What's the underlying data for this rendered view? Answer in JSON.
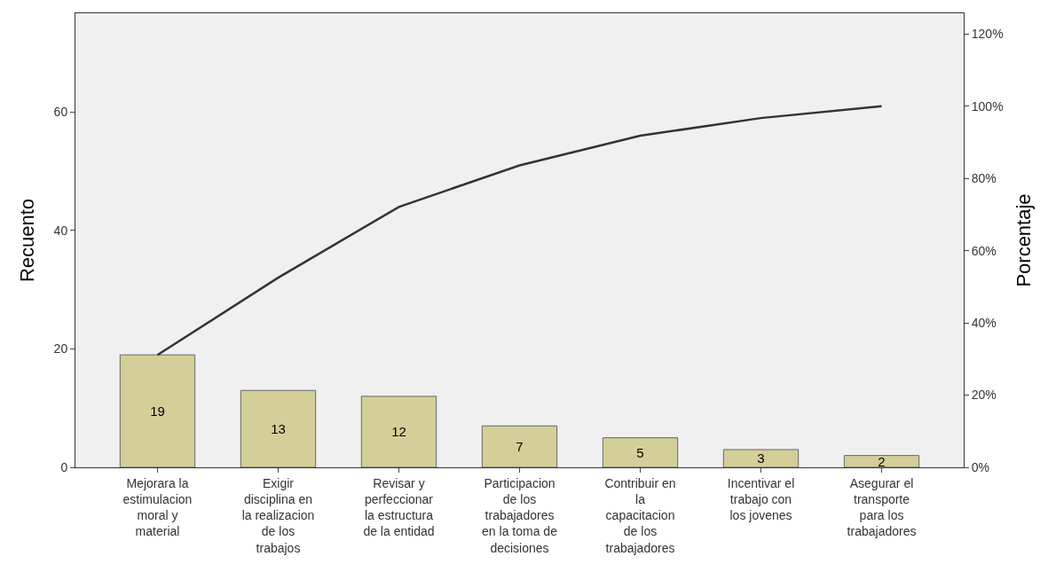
{
  "chart_data": {
    "type": "bar",
    "ylabel": "Recuento",
    "y2label": "Porcentaje",
    "categories": [
      "Mejorara la\nestimulacion\nmoral y\nmaterial",
      "Exigir\ndisciplina en\nla realizacion\nde los\ntrabajos",
      "Revisar y\nperfeccionar\nla estructura\nde la entidad",
      "Participacion\nde los\ntrabajadores\nen la toma de\ndecisiones",
      "Contribuir en\nla\ncapacitacion\nde los\ntrabajadores",
      "Incentivar el\ntrabajo con\nlos jovenes",
      "Asegurar el\ntransporte\npara los\ntrabajadores"
    ],
    "series": [
      {
        "color": "#d4cf98",
        "values": [
          19,
          13,
          12,
          7,
          5,
          3,
          2
        ],
        "value_labels": [
          "19",
          "13",
          "12",
          "7",
          "5",
          "3",
          "2"
        ]
      },
      {
        "type": "line",
        "axis": "y2",
        "color": "#333333",
        "values": [
          31.1,
          52.5,
          72.1,
          83.6,
          91.8,
          96.7,
          100
        ]
      }
    ],
    "ylim": [
      0,
      76.7
    ],
    "yticks": [
      0,
      20,
      40,
      60
    ],
    "y2lim": [
      0,
      125.7
    ],
    "y2ticks": [
      {
        "value": 0,
        "label": "0%"
      },
      {
        "value": 20,
        "label": "20%"
      },
      {
        "value": 40,
        "label": "40%"
      },
      {
        "value": 60,
        "label": "60%"
      },
      {
        "value": 80,
        "label": "80%"
      },
      {
        "value": 100,
        "label": "100%"
      },
      {
        "value": 120,
        "label": "120%"
      }
    ],
    "grid": false,
    "legend": false,
    "marker": "none",
    "line_style": "solid"
  }
}
